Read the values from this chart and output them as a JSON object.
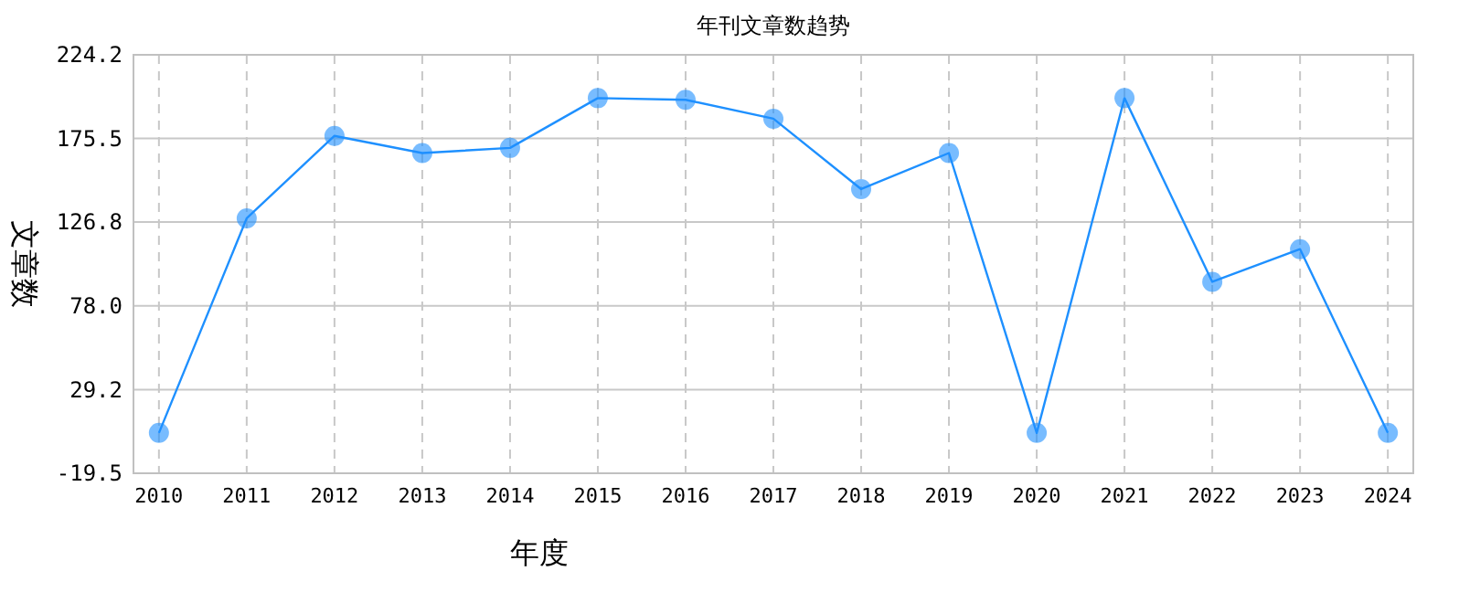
{
  "chart_data": {
    "type": "line",
    "title": "年刊文章数趋势",
    "xlabel": "年度",
    "ylabel": "文章数",
    "categories": [
      "2010",
      "2011",
      "2012",
      "2013",
      "2014",
      "2015",
      "2016",
      "2017",
      "2018",
      "2019",
      "2020",
      "2021",
      "2022",
      "2023",
      "2024"
    ],
    "series": [
      {
        "color": "#1e90ff",
        "values": [
          4,
          129,
          177,
          167,
          170,
          199,
          198,
          187,
          146,
          167,
          4,
          199,
          92,
          111,
          4
        ]
      }
    ],
    "ylim": [
      -19.5,
      224.2
    ],
    "yticks": [
      {
        "value": -19.5,
        "label": "-19.5"
      },
      {
        "value": 29.2,
        "label": "29.2"
      },
      {
        "value": 78.0,
        "label": "78.0"
      },
      {
        "value": 126.8,
        "label": "126.8"
      },
      {
        "value": 175.5,
        "label": "175.5"
      },
      {
        "value": 224.2,
        "label": "224.2"
      }
    ],
    "grid": true,
    "marker": "circle",
    "line_style": "solid"
  }
}
